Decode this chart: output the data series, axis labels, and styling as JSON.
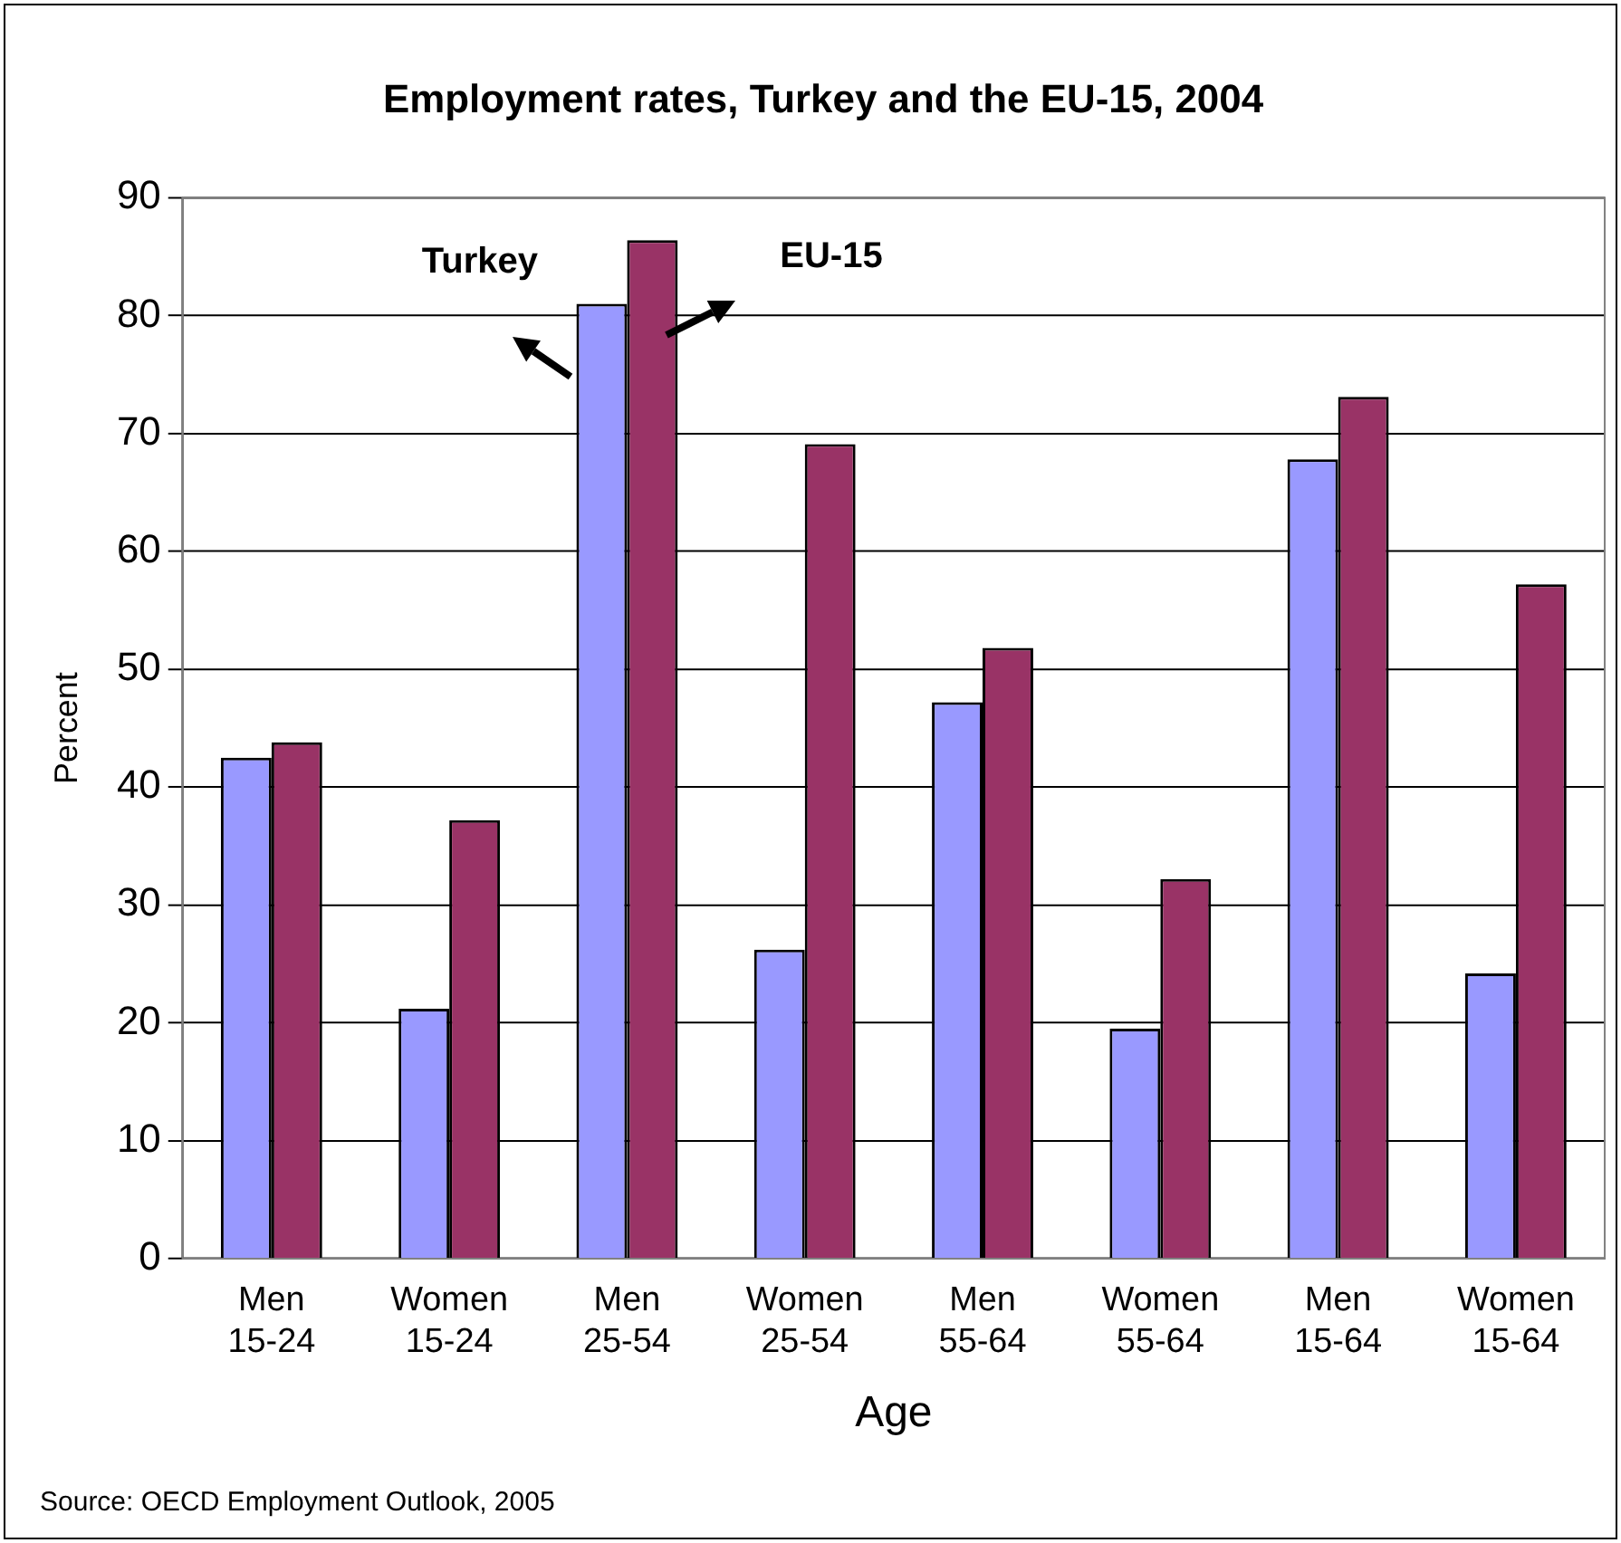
{
  "chart_data": {
    "type": "bar",
    "title": "Employment rates, Turkey and the EU-15, 2004",
    "xlabel": "Age",
    "ylabel": "Percent",
    "categories": [
      "Men 15-24",
      "Women 15-24",
      "Men 25-54",
      "Women 25-54",
      "Men 55-64",
      "Women 55-64",
      "Men 15-64",
      "Women 15-64"
    ],
    "series": [
      {
        "name": "Turkey",
        "color": "#9999ff",
        "values": [
          42.5,
          21.2,
          81.0,
          26.2,
          47.2,
          19.5,
          67.8,
          24.2
        ]
      },
      {
        "name": "EU-15",
        "color": "#993366",
        "values": [
          43.8,
          37.2,
          86.4,
          69.1,
          51.8,
          32.2,
          73.1,
          57.2
        ]
      }
    ],
    "ylim": [
      0,
      90
    ],
    "yticks": [
      0,
      10,
      20,
      30,
      40,
      50,
      60,
      70,
      80,
      90
    ],
    "grid": "y",
    "legend": false,
    "annotations": [
      "Source: OECD Employment Outlook, 2005"
    ]
  }
}
